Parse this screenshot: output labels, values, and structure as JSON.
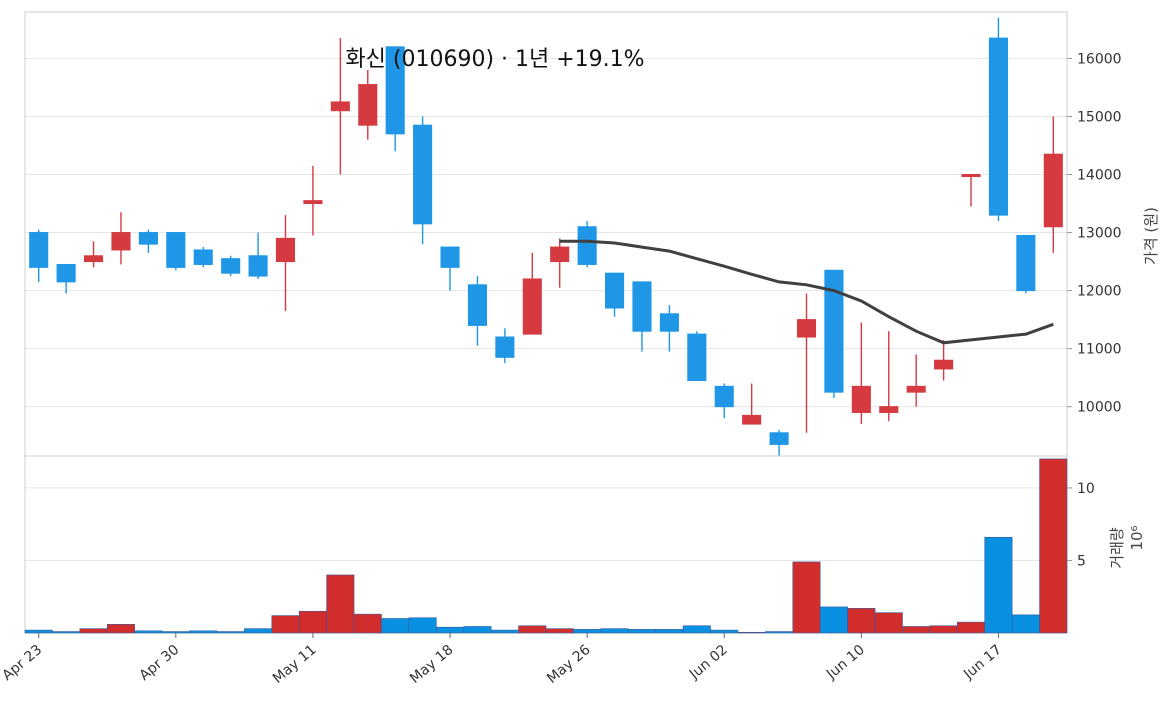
{
  "chart_data": {
    "type": "candlestick",
    "title": "화신 (010690) · 1년 +19.1%",
    "colors": {
      "up": "#d43a3f",
      "down": "#1f97e6",
      "ma": "#404040",
      "volume_up": "#d22d2d",
      "volume_down": "#0a90e0"
    },
    "price_panel": {
      "ylabel": "가격 (원)",
      "yticks": [
        10000,
        11000,
        12000,
        13000,
        14000,
        15000,
        16000
      ],
      "ylim": [
        9150,
        16800
      ]
    },
    "volume_panel": {
      "ylabel": "거래량",
      "scale_label": "10⁶",
      "yticks": [
        5,
        10
      ],
      "ylim": [
        0,
        12.2
      ]
    },
    "x_ticks": [
      {
        "index": 0,
        "label": "Apr 23"
      },
      {
        "index": 5,
        "label": "Apr 30"
      },
      {
        "index": 10,
        "label": "May 11"
      },
      {
        "index": 15,
        "label": "May 18"
      },
      {
        "index": 20,
        "label": "May 26"
      },
      {
        "index": 25,
        "label": "Jun 02"
      },
      {
        "index": 30,
        "label": "Jun 10"
      },
      {
        "index": 35,
        "label": "Jun 17"
      }
    ],
    "candles": [
      {
        "open": 13000,
        "high": 13050,
        "low": 12150,
        "close": 12400,
        "volume": 0.2
      },
      {
        "open": 12450,
        "high": 12450,
        "low": 11950,
        "close": 12150,
        "volume": 0.1
      },
      {
        "open": 12500,
        "high": 12850,
        "low": 12400,
        "close": 12600,
        "volume": 0.3
      },
      {
        "open": 12700,
        "high": 13350,
        "low": 12450,
        "close": 13000,
        "volume": 0.6
      },
      {
        "open": 13000,
        "high": 13050,
        "low": 12650,
        "close": 12800,
        "volume": 0.15
      },
      {
        "open": 13000,
        "high": 13000,
        "low": 12350,
        "close": 12400,
        "volume": 0.1
      },
      {
        "open": 12700,
        "high": 12750,
        "low": 12400,
        "close": 12450,
        "volume": 0.15
      },
      {
        "open": 12550,
        "high": 12600,
        "low": 12250,
        "close": 12300,
        "volume": 0.1
      },
      {
        "open": 12600,
        "high": 13000,
        "low": 12200,
        "close": 12250,
        "volume": 0.3
      },
      {
        "open": 12500,
        "high": 13300,
        "low": 11650,
        "close": 12900,
        "volume": 1.2
      },
      {
        "open": 13500,
        "high": 14150,
        "low": 12950,
        "close": 13550,
        "volume": 1.5
      },
      {
        "open": 15100,
        "high": 16350,
        "low": 14000,
        "close": 15250,
        "volume": 4.0
      },
      {
        "open": 14850,
        "high": 15800,
        "low": 14600,
        "close": 15550,
        "volume": 1.3
      },
      {
        "open": 16200,
        "high": 16200,
        "low": 14400,
        "close": 14700,
        "volume": 1.0
      },
      {
        "open": 14850,
        "high": 15000,
        "low": 12800,
        "close": 13150,
        "volume": 1.05
      },
      {
        "open": 12750,
        "high": 12750,
        "low": 12000,
        "close": 12400,
        "volume": 0.4
      },
      {
        "open": 12100,
        "high": 12250,
        "low": 11050,
        "close": 11400,
        "volume": 0.45
      },
      {
        "open": 11200,
        "high": 11350,
        "low": 10750,
        "close": 10850,
        "volume": 0.2
      },
      {
        "open": 11250,
        "high": 12650,
        "low": 11250,
        "close": 12200,
        "volume": 0.5
      },
      {
        "open": 12500,
        "high": 12900,
        "low": 12050,
        "close": 12750,
        "volume": 0.3
      },
      {
        "open": 13100,
        "high": 13200,
        "low": 12400,
        "close": 12450,
        "volume": 0.25
      },
      {
        "open": 12300,
        "high": 12300,
        "low": 11550,
        "close": 11700,
        "volume": 0.3
      },
      {
        "open": 12150,
        "high": 12150,
        "low": 10950,
        "close": 11300,
        "volume": 0.25
      },
      {
        "open": 11600,
        "high": 11750,
        "low": 10950,
        "close": 11300,
        "volume": 0.25
      },
      {
        "open": 11250,
        "high": 11300,
        "low": 10450,
        "close": 10450,
        "volume": 0.5
      },
      {
        "open": 10350,
        "high": 10400,
        "low": 9800,
        "close": 10000,
        "volume": 0.2
      },
      {
        "open": 9700,
        "high": 10400,
        "low": 9700,
        "close": 9850,
        "volume": 0.05
      },
      {
        "open": 9550,
        "high": 9600,
        "low": 9150,
        "close": 9350,
        "volume": 0.1
      },
      {
        "open": 11200,
        "high": 11950,
        "low": 9550,
        "close": 11500,
        "volume": 4.9
      },
      {
        "open": 12350,
        "high": 12350,
        "low": 10150,
        "close": 10250,
        "volume": 1.8
      },
      {
        "open": 9900,
        "high": 11450,
        "low": 9700,
        "close": 10350,
        "volume": 1.7
      },
      {
        "open": 9900,
        "high": 11300,
        "low": 9750,
        "close": 10000,
        "volume": 1.4
      },
      {
        "open": 10250,
        "high": 10900,
        "low": 10000,
        "close": 10350,
        "volume": 0.45
      },
      {
        "open": 10650,
        "high": 11150,
        "low": 10450,
        "close": 10800,
        "volume": 0.5
      },
      {
        "open": 14000,
        "high": 14000,
        "low": 13450,
        "close": 14000,
        "volume": 0.75
      },
      {
        "open": 16350,
        "high": 16700,
        "low": 13200,
        "close": 13300,
        "volume": 6.6
      },
      {
        "open": 12950,
        "high": 12950,
        "low": 11950,
        "close": 12000,
        "volume": 1.25
      },
      {
        "open": 13100,
        "high": 15000,
        "low": 12650,
        "close": 14350,
        "volume": 12.0
      }
    ],
    "moving_average": {
      "start_index": 19,
      "values": [
        12850,
        12850,
        12820,
        12750,
        12680,
        12550,
        12420,
        12280,
        12150,
        12100,
        12000,
        11820,
        11550,
        11300,
        11100,
        11150,
        11200,
        11250,
        11420
      ]
    }
  }
}
